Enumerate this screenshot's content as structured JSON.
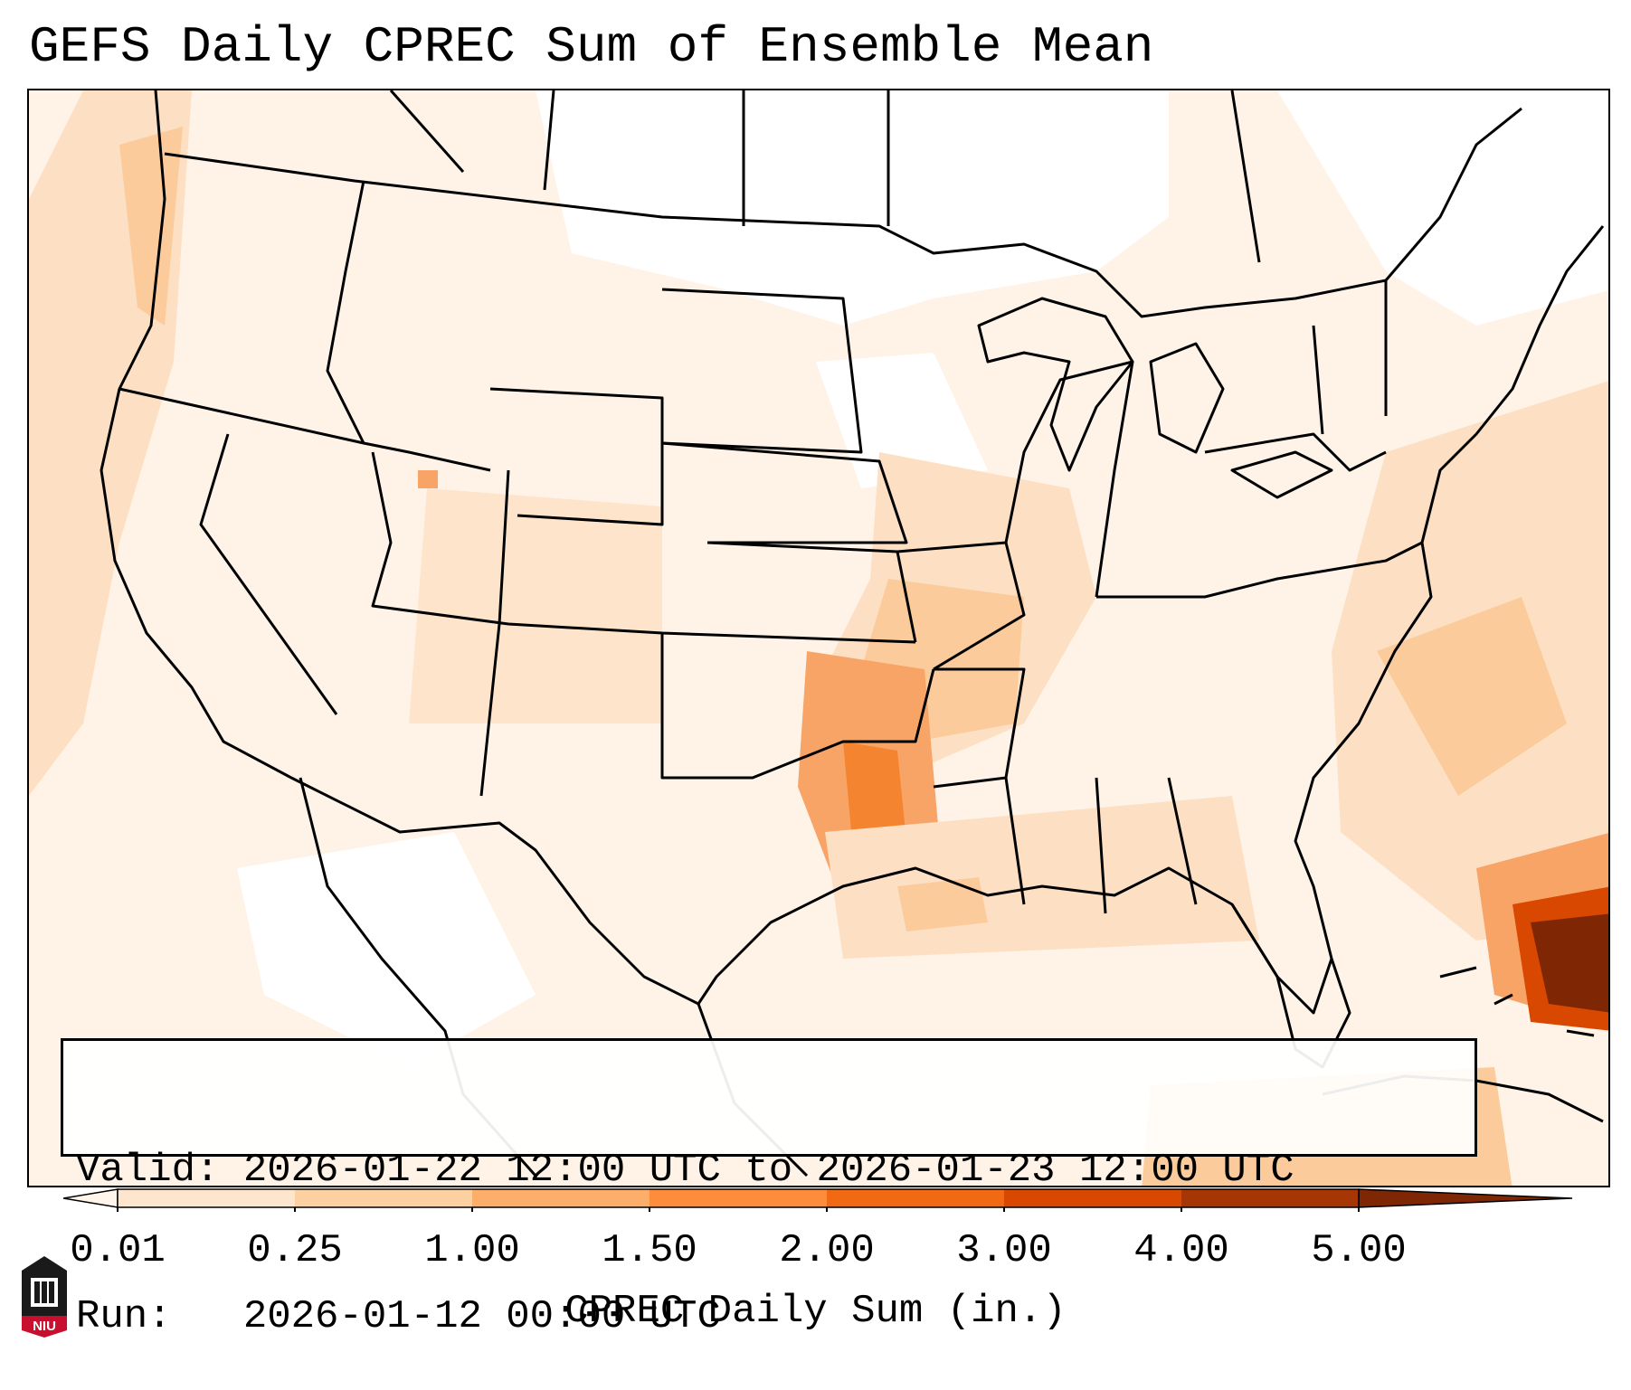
{
  "title": "GEFS Daily CPREC Sum of Ensemble Mean",
  "info": {
    "valid_line": "Valid: 2026-01-22 12:00 UTC to 2026-01-23 12:00 UTC",
    "run_line": "Run:   2026-01-12 00:00 UTC"
  },
  "colorbar": {
    "label": "CPREC Daily Sum (in.)",
    "ticks": [
      "0.01",
      "0.25",
      "1.00",
      "1.50",
      "2.00",
      "3.00",
      "4.00",
      "5.00"
    ],
    "colors": [
      "#fff5eb",
      "#fee6ce",
      "#fdd0a2",
      "#fdae6b",
      "#fd8d3c",
      "#f16913",
      "#d94801",
      "#a63603",
      "#7f2704"
    ]
  },
  "logo": {
    "text": "NIU",
    "color": "#c8102e"
  },
  "map": {
    "region": "Contiguous United States",
    "field": "CPREC daily sum",
    "palette": {
      "background": "#fff3e8",
      "trace": "#ffffff",
      "light": "#fde4cb",
      "medium": "#fbcb9c",
      "heavy": "#f9a467",
      "heavier": "#f4842f",
      "max": "#7f2704"
    }
  }
}
